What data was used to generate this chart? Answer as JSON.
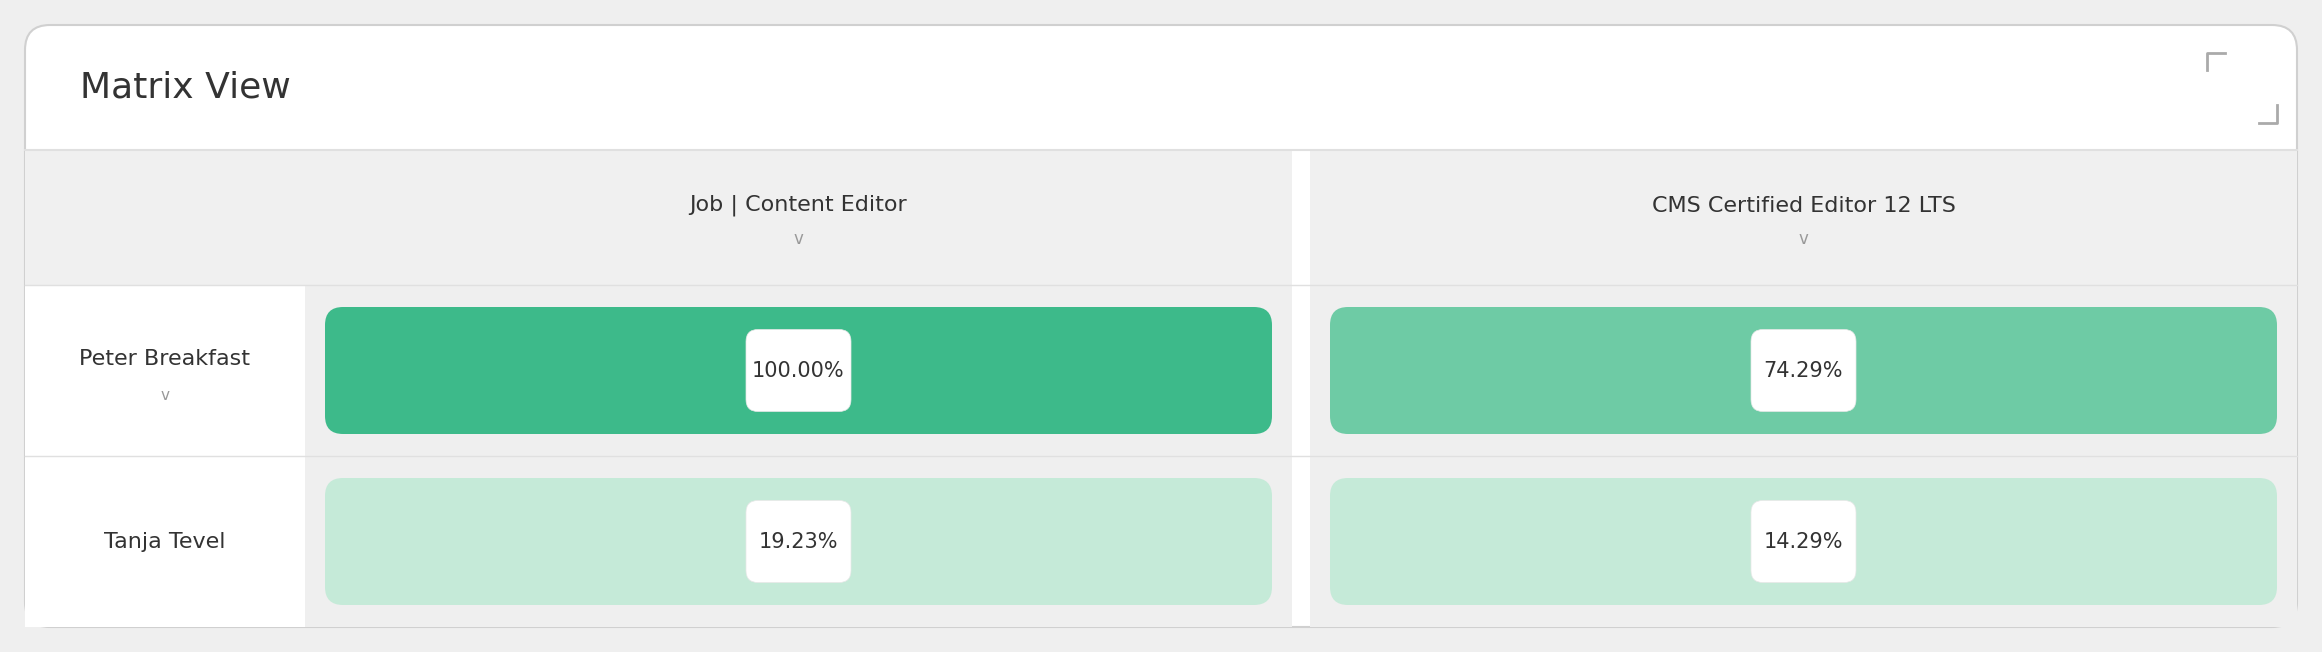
{
  "title": "Matrix View",
  "columns": [
    "Job | Content Editor",
    "CMS Certified Editor 12 LTS"
  ],
  "column_arrow": "v",
  "rows": [
    {
      "name": "Peter Breakfast",
      "has_arrow": true,
      "values": [
        "100.00%",
        "74.29%"
      ],
      "bar_colors": [
        "#3dba8a",
        "#6ecba5"
      ]
    },
    {
      "name": "Tanja Tevel",
      "has_arrow": false,
      "values": [
        "19.23%",
        "14.29%"
      ],
      "bar_colors": [
        "#c5ead8",
        "#c5ead8"
      ]
    }
  ],
  "bg_color": "#efefef",
  "card_bg": "#ffffff",
  "header_bg": "#f0f0f0",
  "cell_gap_bg": "#efefef",
  "border_color": "#dddddd",
  "text_color": "#333333",
  "title_fontsize": 26,
  "label_fontsize": 16,
  "value_fontsize": 15,
  "col_header_fontsize": 16
}
